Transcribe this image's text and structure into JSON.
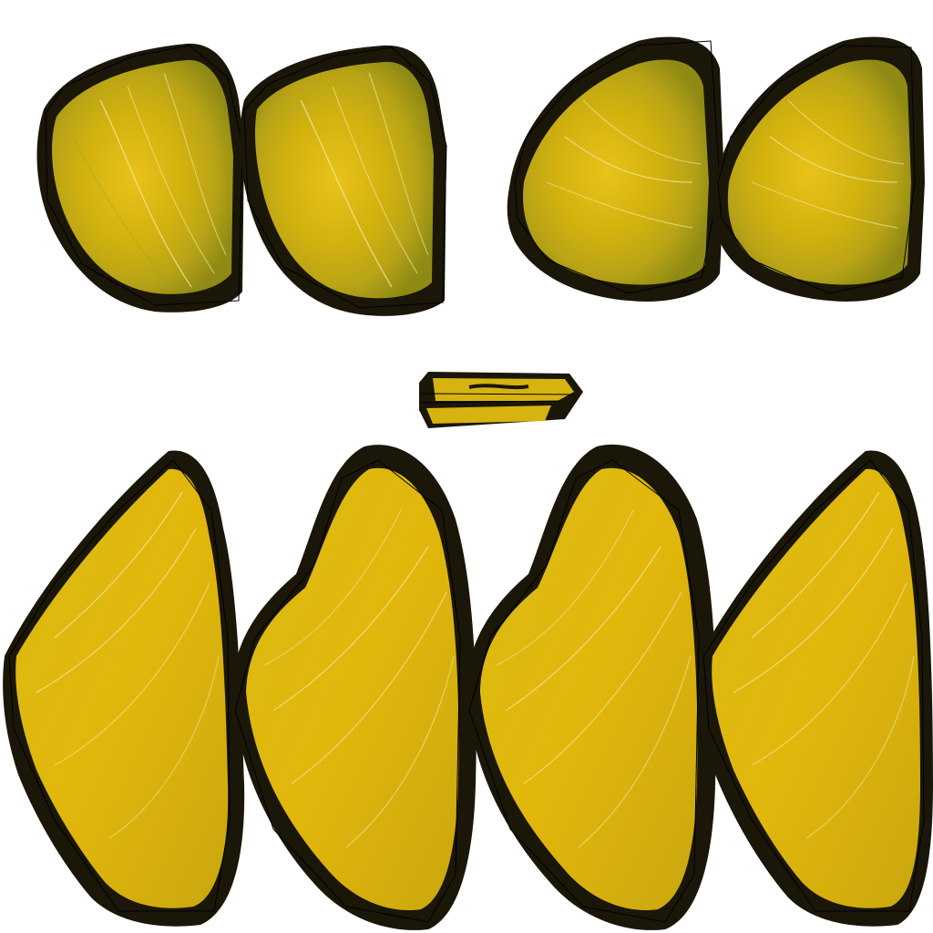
{
  "texture": {
    "background_color": "#ffffff",
    "colors": {
      "yellow": "#d9b60f",
      "yellow_light": "#efcc2a",
      "yellow_green": "#a8a418",
      "dark_edge": "#1a1608",
      "vein": "#f0e7a0",
      "outline": "#000000"
    },
    "pieces": [
      {
        "name": "upper-wing-piece-1",
        "group": "forewing"
      },
      {
        "name": "upper-wing-piece-2",
        "group": "forewing"
      },
      {
        "name": "upper-wing-piece-3",
        "group": "forewing"
      },
      {
        "name": "upper-wing-piece-4",
        "group": "forewing"
      },
      {
        "name": "body-strip-piece",
        "group": "body"
      },
      {
        "name": "lower-wing-piece-1",
        "group": "hindwing"
      },
      {
        "name": "lower-wing-piece-2",
        "group": "hindwing"
      },
      {
        "name": "lower-wing-piece-3",
        "group": "hindwing"
      },
      {
        "name": "lower-wing-piece-4",
        "group": "hindwing"
      }
    ]
  }
}
